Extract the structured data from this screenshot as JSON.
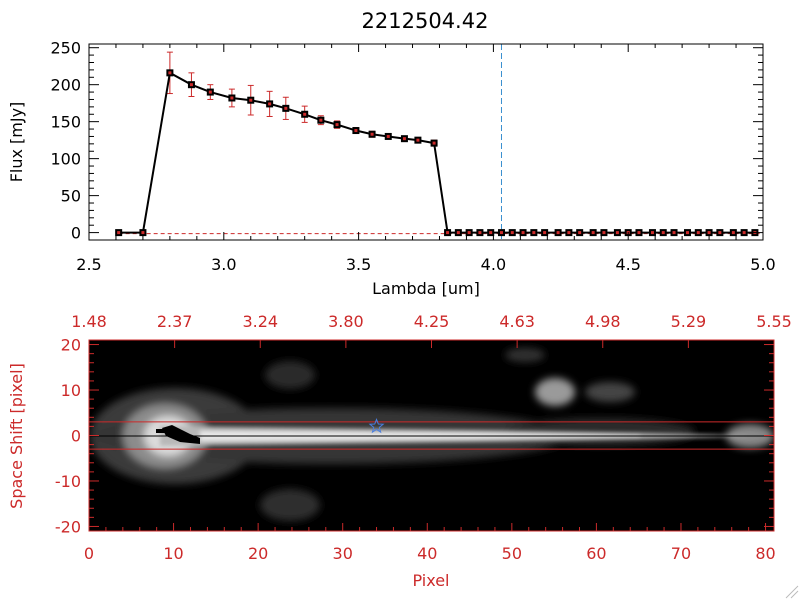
{
  "title": "2212504.42",
  "chart_data": [
    {
      "type": "line",
      "title": "2212504.42",
      "xlabel": "Lambda [um]",
      "ylabel": "Flux [mJy]",
      "xlim": [
        2.5,
        5.0
      ],
      "ylim": [
        -10,
        255
      ],
      "x_ticks": [
        "2.5",
        "3.0",
        "3.5",
        "4.0",
        "4.5",
        "5.0"
      ],
      "y_ticks": [
        "0",
        "50",
        "100",
        "150",
        "200",
        "250"
      ],
      "vline_x": 4.03,
      "series": [
        {
          "x": [
            2.61,
            2.7,
            2.8,
            2.88,
            2.95,
            3.03,
            3.1,
            3.17,
            3.23,
            3.3,
            3.36,
            3.42,
            3.49,
            3.55,
            3.61,
            3.67,
            3.72,
            3.78,
            3.83,
            3.87,
            3.91,
            3.95,
            3.99,
            4.03,
            4.07,
            4.11,
            4.15,
            4.19,
            4.24,
            4.28,
            4.32,
            4.37,
            4.41,
            4.46,
            4.5,
            4.54,
            4.59,
            4.63,
            4.67,
            4.72,
            4.76,
            4.8,
            4.84,
            4.89,
            4.93,
            4.97
          ],
          "y": [
            0,
            0,
            216,
            200,
            190,
            182,
            179,
            174,
            168,
            160,
            152,
            146,
            138,
            133,
            130,
            127,
            125,
            121,
            0,
            0,
            0,
            0,
            0,
            0,
            0,
            0,
            0,
            0,
            0,
            0,
            0,
            0,
            0,
            0,
            0,
            0,
            0,
            0,
            0,
            0,
            0,
            0,
            0,
            0,
            0,
            0
          ],
          "yerr": [
            0,
            0,
            28,
            16,
            10,
            12,
            20,
            17,
            15,
            11,
            6,
            5,
            4,
            4,
            3,
            3,
            3,
            4,
            0,
            0,
            0,
            0,
            0,
            0,
            0,
            0,
            0,
            0,
            0,
            0,
            0,
            0,
            0,
            0,
            0,
            0,
            0,
            0,
            0,
            0,
            0,
            0,
            0,
            0,
            0,
            0
          ]
        }
      ]
    },
    {
      "type": "heatmap",
      "xlabel": "Pixel",
      "ylabel": "Space Shift [pixel]",
      "xlim": [
        0,
        81
      ],
      "ylim": [
        -21,
        21
      ],
      "x_ticks": [
        "0",
        "10",
        "20",
        "30",
        "40",
        "50",
        "60",
        "70",
        "80"
      ],
      "y_ticks": [
        "-20",
        "-10",
        "0",
        "10",
        "20"
      ],
      "top_ticks": [
        "1.48",
        "2.37",
        "3.24",
        "3.80",
        "4.25",
        "4.63",
        "4.98",
        "5.29",
        "5.55"
      ],
      "aperture_y": [
        -3,
        3
      ],
      "star_marker": {
        "x": 34,
        "y": 2
      }
    }
  ],
  "colors": {
    "frame_red": "#cc2a2a",
    "series": "#000000",
    "errbar": "#cc2a2a",
    "vline": "#3a8fd0",
    "star": "#4a7fe0"
  }
}
